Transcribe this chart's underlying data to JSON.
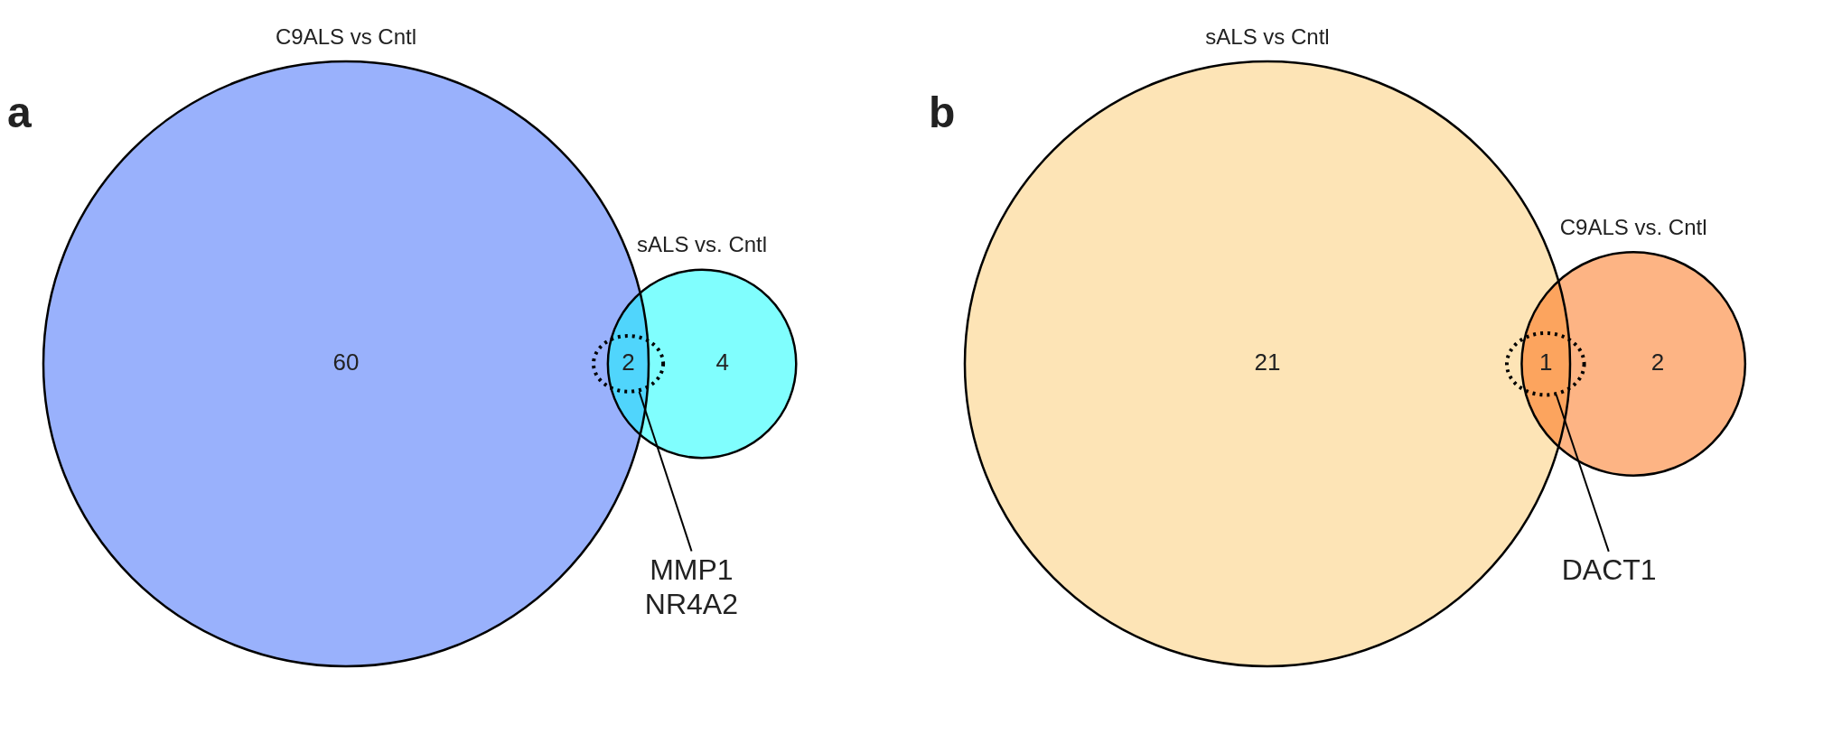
{
  "chart_data": [
    {
      "type": "other",
      "categories": [
        "C9ALS vs Cntl",
        null,
        "sALS vs. Cntl"
      ],
      "values": [
        60,
        2,
        4
      ],
      "colors": [
        "#99b1fc",
        "#50d5fc",
        "#80fefe"
      ],
      "data_labels": true,
      "annotations": [
        "a",
        "MMP1\nNR4A2"
      ]
    },
    {
      "type": "other",
      "categories": [
        "sALS vs Cntl",
        null,
        "C9ALS vs. Cntl"
      ],
      "values": [
        21,
        1,
        2
      ],
      "colors": [
        "#fde4b6",
        "#fca45e",
        "#fdb484"
      ],
      "data_labels": true,
      "annotations": [
        "b",
        "DACT1"
      ]
    }
  ]
}
